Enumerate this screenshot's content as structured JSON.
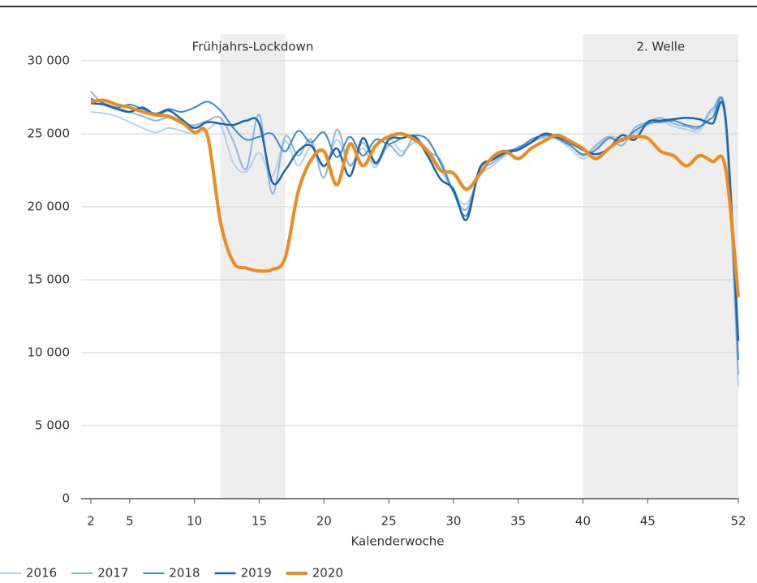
{
  "chart_data": {
    "type": "line",
    "x_label": "Kalenderwoche",
    "x": [
      2,
      3,
      4,
      5,
      6,
      7,
      8,
      9,
      10,
      11,
      12,
      13,
      14,
      15,
      16,
      17,
      18,
      19,
      20,
      21,
      22,
      23,
      24,
      25,
      26,
      27,
      28,
      29,
      30,
      31,
      32,
      33,
      34,
      35,
      36,
      37,
      38,
      39,
      40,
      41,
      42,
      43,
      44,
      45,
      46,
      47,
      48,
      49,
      50,
      51,
      52
    ],
    "xlim": [
      2,
      52
    ],
    "xticks": [
      2,
      5,
      10,
      15,
      20,
      25,
      30,
      35,
      40,
      45,
      52
    ],
    "ylim": [
      0,
      30000
    ],
    "yticks": [
      {
        "value": 0,
        "label": "0"
      },
      {
        "value": 5000,
        "label": "5 000"
      },
      {
        "value": 10000,
        "label": "10 000"
      },
      {
        "value": 15000,
        "label": "15 000"
      },
      {
        "value": 20000,
        "label": "20 000"
      },
      {
        "value": 25000,
        "label": "25 000"
      },
      {
        "value": 30000,
        "label": "30 000"
      }
    ],
    "grid": true,
    "legend": "bottom",
    "bands": [
      {
        "label": "Frühjahrs-Lockdown",
        "from": 12,
        "to": 17
      },
      {
        "label": "2. Welle",
        "from": 40,
        "to": 52
      }
    ],
    "series": [
      {
        "name": "2016",
        "color": "#b7d0ea",
        "width": 2,
        "values": [
          26500,
          26400,
          26200,
          25800,
          25400,
          25100,
          25400,
          25200,
          25000,
          25300,
          25600,
          23000,
          22400,
          23700,
          22100,
          24500,
          22800,
          24100,
          22700,
          24600,
          22900,
          24000,
          22700,
          24600,
          23800,
          24400,
          24000,
          22600,
          21000,
          20200,
          22100,
          22800,
          23500,
          24000,
          24500,
          24700,
          24600,
          24000,
          23300,
          24000,
          24800,
          24700,
          25000,
          25600,
          25900,
          25500,
          25300,
          25200,
          26500,
          25500,
          7700
        ]
      },
      {
        "name": "2017",
        "color": "#8db5e0",
        "width": 2,
        "values": [
          27900,
          27000,
          26800,
          26500,
          26200,
          25900,
          26100,
          25700,
          25600,
          25900,
          26100,
          24500,
          22600,
          26300,
          20900,
          24800,
          23500,
          24600,
          22000,
          25300,
          22800,
          24400,
          22900,
          24200,
          23500,
          24800,
          23800,
          23200,
          21000,
          19800,
          22300,
          23000,
          23600,
          24100,
          24400,
          24800,
          24900,
          24300,
          23500,
          24200,
          24800,
          24200,
          25400,
          25800,
          26100,
          25700,
          25500,
          25400,
          26700,
          25900,
          8500
        ]
      },
      {
        "name": "2018",
        "color": "#3f8ad0",
        "width": 2,
        "values": [
          27400,
          27100,
          26800,
          27000,
          26700,
          26400,
          26700,
          26500,
          26800,
          27200,
          26600,
          25400,
          24600,
          24800,
          25000,
          23800,
          25200,
          24400,
          25100,
          23400,
          24800,
          23500,
          24600,
          24300,
          24700,
          24900,
          24600,
          23000,
          21000,
          19400,
          22500,
          23300,
          23800,
          24000,
          24600,
          24900,
          24700,
          24200,
          23600,
          23900,
          24700,
          24500,
          25200,
          25700,
          25800,
          25900,
          25600,
          25500,
          26100,
          26300,
          9500
        ]
      },
      {
        "name": "2019",
        "color": "#1b66ad",
        "width": 2.5,
        "values": [
          27100,
          27000,
          26700,
          26500,
          26800,
          26300,
          26600,
          26000,
          25400,
          25800,
          25700,
          25600,
          25900,
          25700,
          21700,
          22500,
          23800,
          24200,
          22800,
          24000,
          22100,
          24700,
          23000,
          24600,
          24700,
          24800,
          23500,
          21900,
          21200,
          19100,
          22600,
          23200,
          23700,
          23900,
          24400,
          25000,
          24800,
          24400,
          23900,
          23600,
          24000,
          24900,
          24600,
          25800,
          25900,
          26000,
          26100,
          26000,
          25700,
          26200,
          10800
        ]
      },
      {
        "name": "2020",
        "color": "#f08a1c",
        "width": 4,
        "values": [
          27200,
          27300,
          27000,
          26800,
          26500,
          26300,
          26200,
          25800,
          25100,
          24900,
          19000,
          16200,
          15800,
          15600,
          15700,
          16500,
          21000,
          23200,
          23800,
          21500,
          24300,
          22800,
          24200,
          24800,
          25000,
          24600,
          23800,
          22500,
          22300,
          21200,
          22200,
          23400,
          23800,
          23300,
          24000,
          24500,
          24900,
          24500,
          24000,
          23300,
          24000,
          24600,
          24800,
          24700,
          23800,
          23500,
          22800,
          23500,
          23100,
          22700,
          13800
        ]
      }
    ]
  }
}
